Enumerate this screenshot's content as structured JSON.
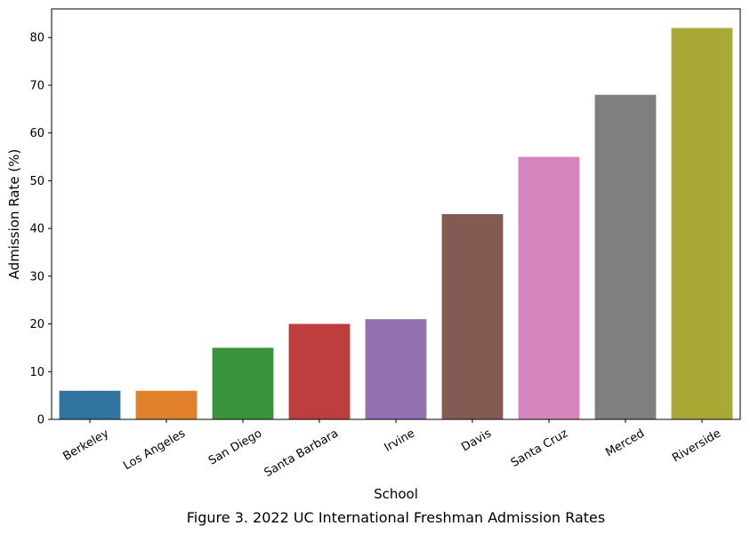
{
  "chart_data": {
    "type": "bar",
    "categories": [
      "Berkeley",
      "Los Angeles",
      "San Diego",
      "Santa Barbara",
      "Irvine",
      "Davis",
      "Santa Cruz",
      "Merced",
      "Riverside"
    ],
    "values": [
      6,
      6,
      15,
      20,
      21,
      43,
      55,
      68,
      82
    ],
    "colors": [
      "#3274a1",
      "#e1812c",
      "#3a923a",
      "#c03d3e",
      "#9372b2",
      "#845b53",
      "#d684bd",
      "#7f7f7f",
      "#a9aa35"
    ],
    "xlabel": "School",
    "ylabel": "Admission Rate (%)",
    "ylim": [
      0,
      86
    ],
    "yticks": [
      0,
      10,
      20,
      30,
      40,
      50,
      60,
      70,
      80
    ],
    "grid": false,
    "caption": "Figure 3. 2022 UC International Freshman Admission Rates"
  }
}
